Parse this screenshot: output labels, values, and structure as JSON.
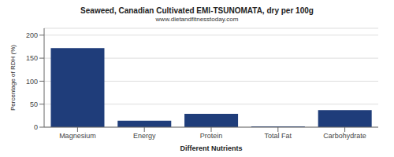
{
  "chart_data": {
    "type": "bar",
    "title": "Seaweed, Canadian Cultivated EMI-TSUNOMATA, dry per 100g",
    "subtitle": "www.dietandfitnesstoday.com",
    "xlabel": "Different Nutrients",
    "ylabel": "Percentage of RDH (%)",
    "categories": [
      "Magnesium",
      "Energy",
      "Protein",
      "Total Fat",
      "Carbohydrate"
    ],
    "values": [
      172,
      14,
      29,
      1.5,
      37
    ],
    "color": "#1f3d7a",
    "ylim": [
      0,
      215
    ],
    "yticks": [
      0,
      50,
      100,
      150,
      200
    ],
    "grid": true
  }
}
